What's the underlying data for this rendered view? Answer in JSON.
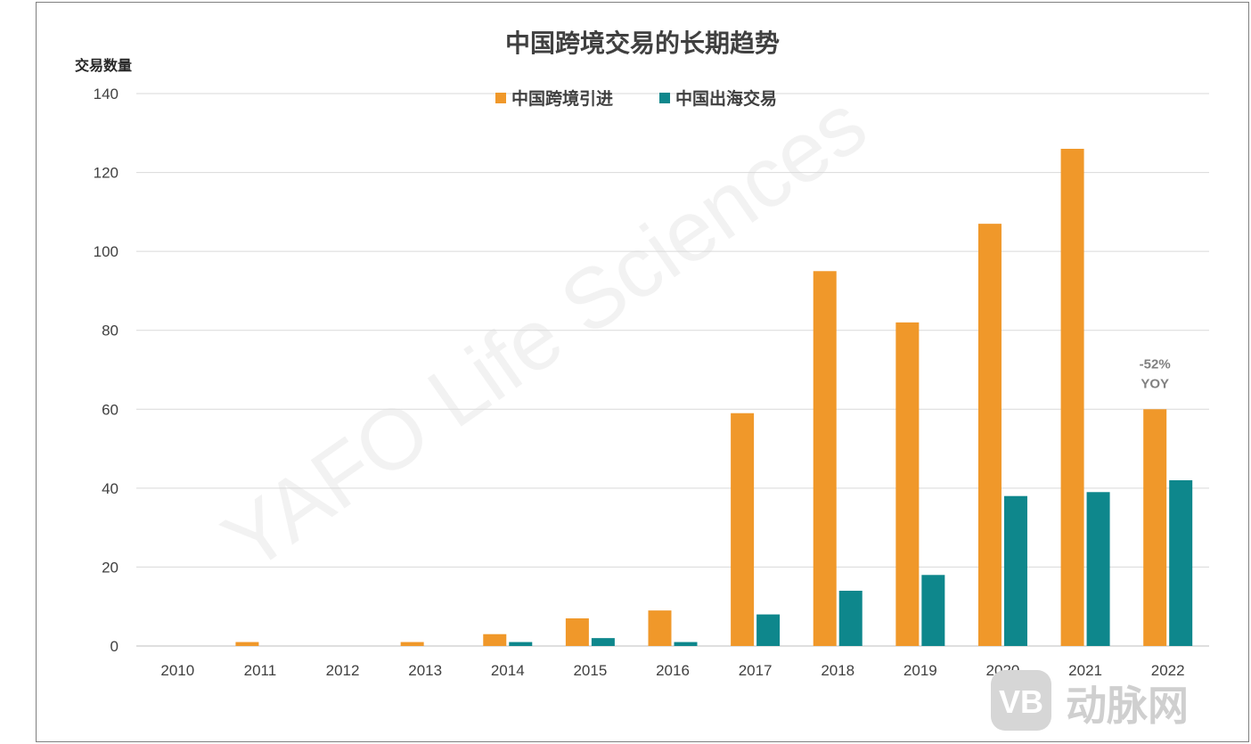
{
  "chart_data": {
    "type": "bar",
    "title": "中国跨境交易的长期趋势",
    "ylabel": "交易数量",
    "xlabel": "",
    "ylim": [
      0,
      140
    ],
    "yticks": [
      0,
      20,
      40,
      60,
      80,
      100,
      120,
      140
    ],
    "grid": true,
    "legend_position": "top-center",
    "categories": [
      "2010",
      "2011",
      "2012",
      "2013",
      "2014",
      "2015",
      "2016",
      "2017",
      "2018",
      "2019",
      "2020",
      "2021",
      "2022"
    ],
    "series": [
      {
        "name": "中国跨境引进",
        "color": "#f0982a",
        "values": [
          0,
          1,
          0,
          1,
          3,
          7,
          9,
          59,
          95,
          82,
          107,
          126,
          60
        ]
      },
      {
        "name": "中国出海交易",
        "color": "#0e878c",
        "values": [
          0,
          0,
          0,
          0,
          1,
          2,
          1,
          8,
          14,
          18,
          38,
          39,
          42
        ]
      }
    ],
    "annotations": [
      {
        "category": "2022",
        "series": 0,
        "lines": [
          "-52%",
          "YOY"
        ]
      }
    ]
  },
  "watermark": "YAFO Life Sciences",
  "logo": {
    "mark": "VB",
    "text": "动脉网"
  }
}
